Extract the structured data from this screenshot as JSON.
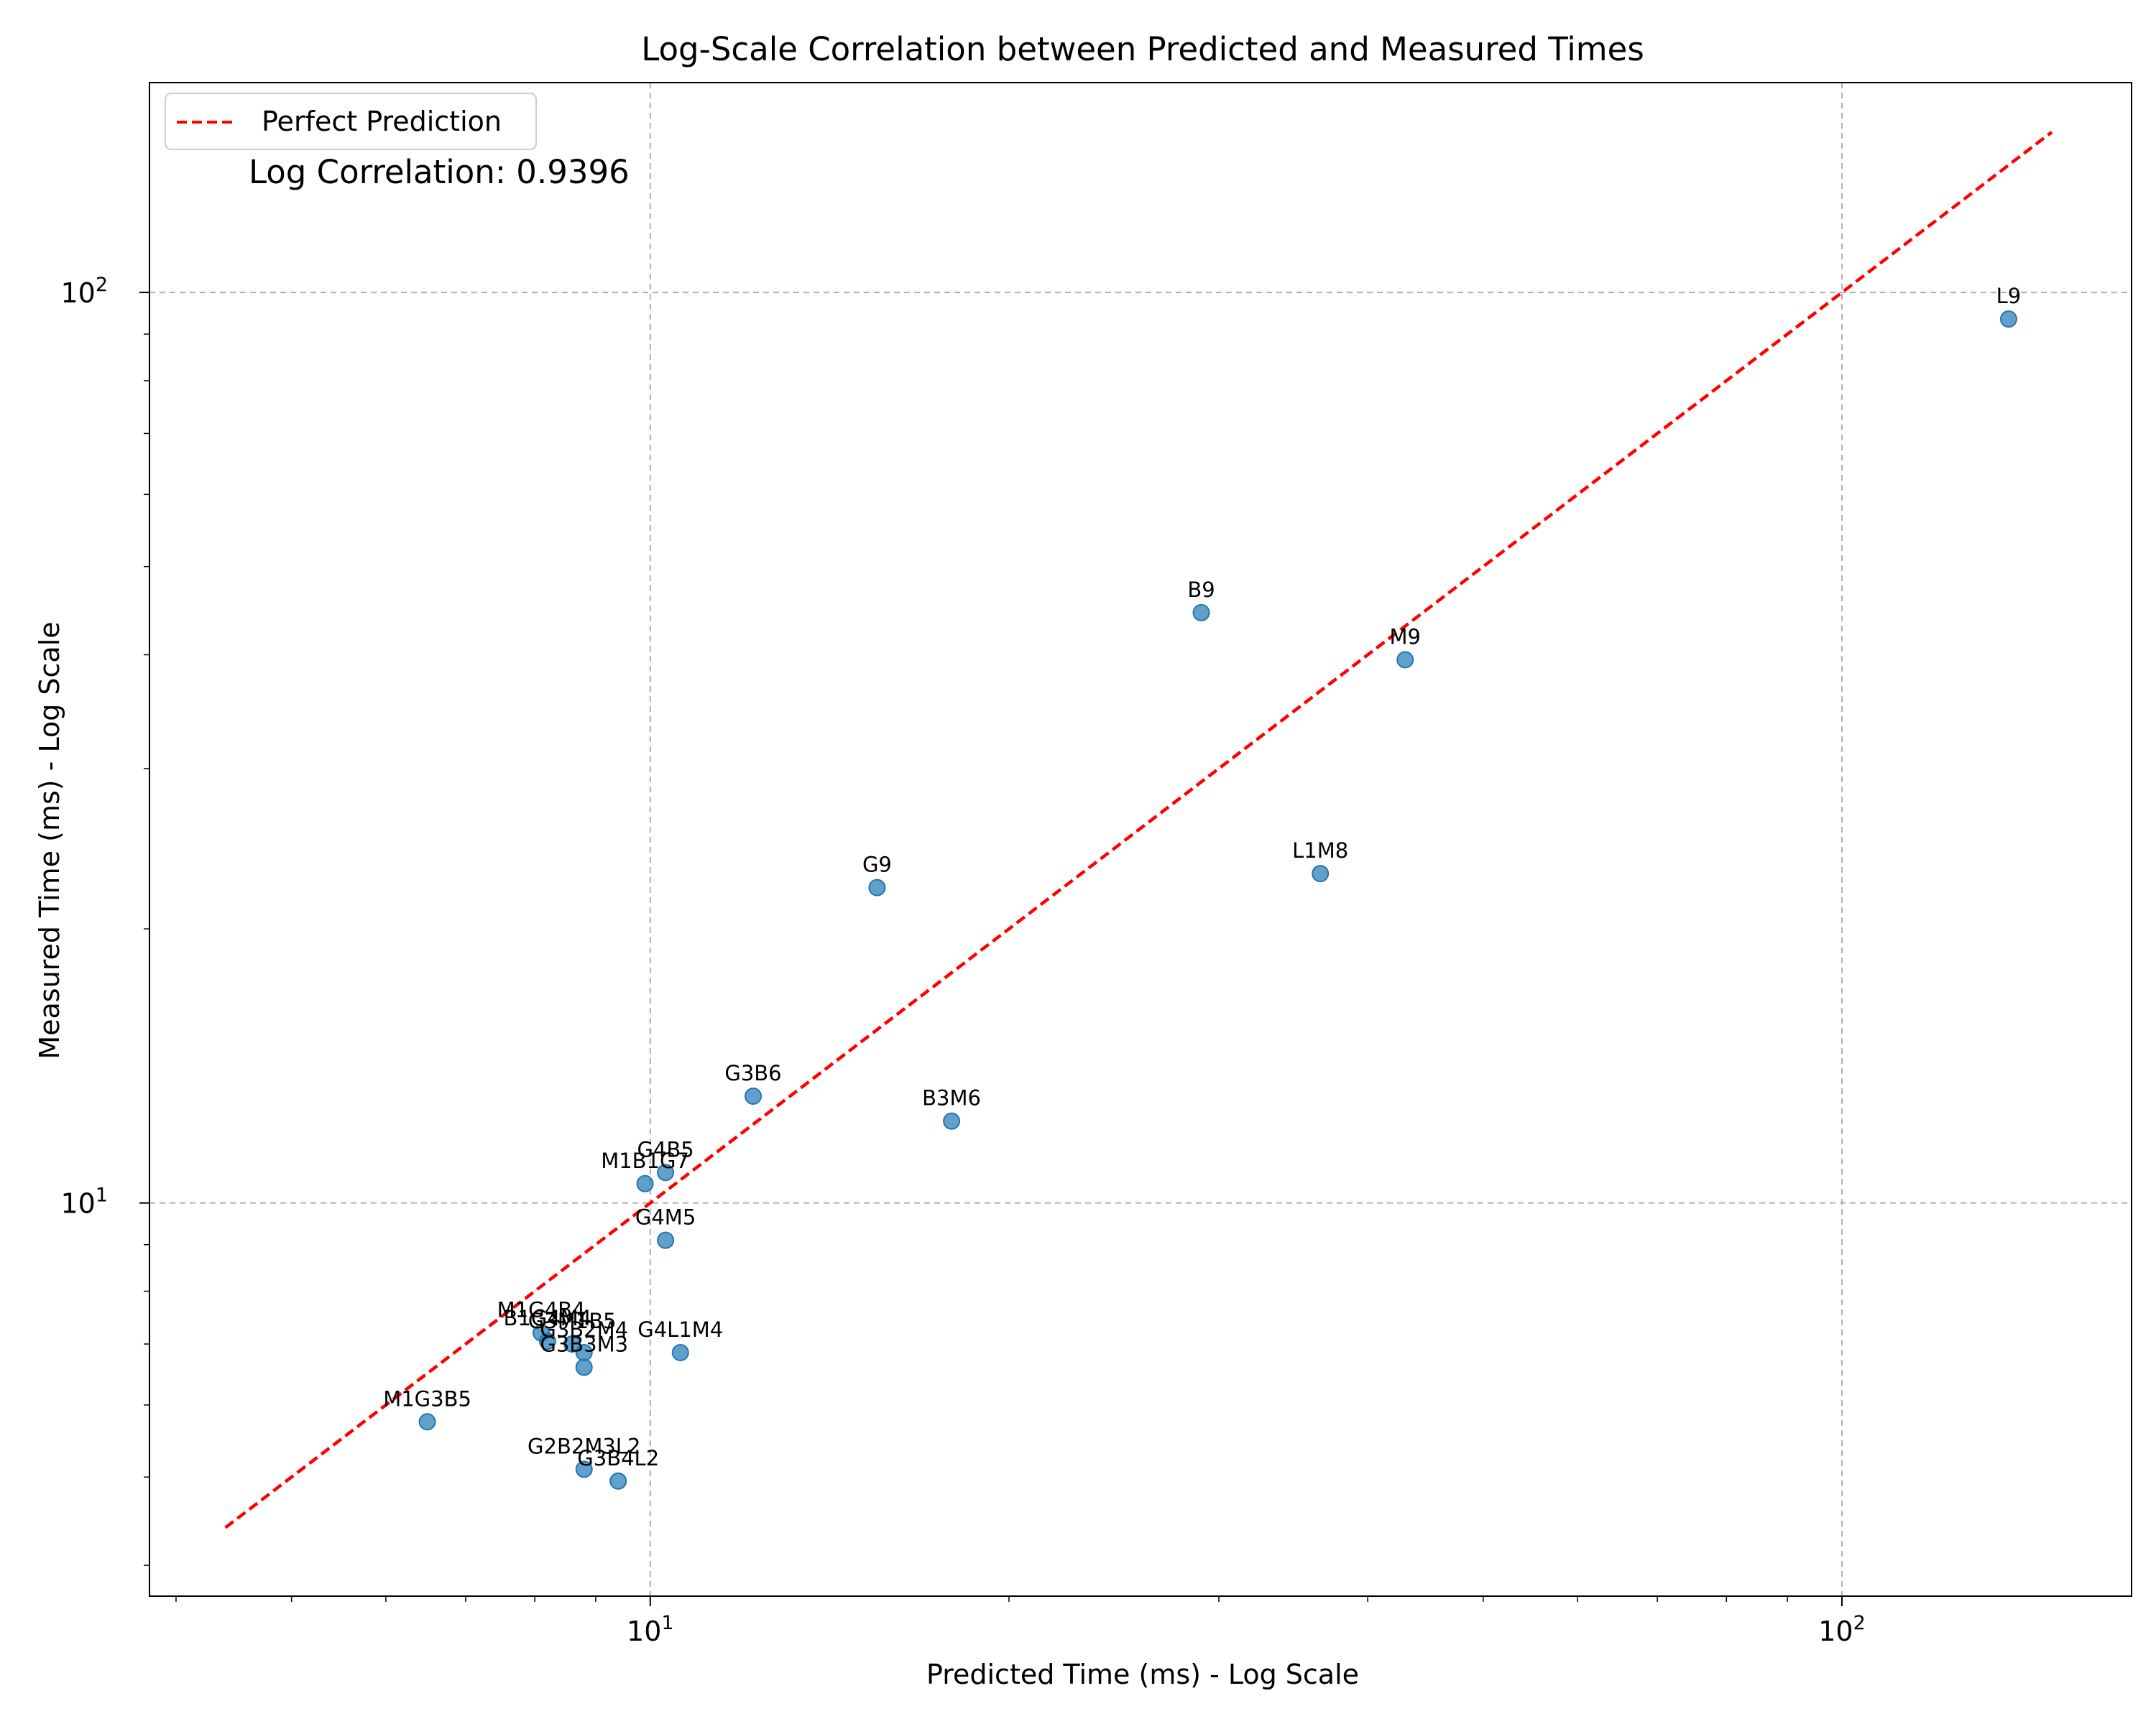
{
  "chart_data": {
    "type": "scatter",
    "title": "Log-Scale Correlation between Predicted and Measured Times",
    "xlabel": "Predicted Time (ms) - Log Scale",
    "ylabel": "Measured Time (ms) - Log Scale",
    "xscale": "log",
    "yscale": "log",
    "xlim": [
      3.8,
      175
    ],
    "ylim": [
      3.7,
      170
    ],
    "x_ticks": [
      {
        "value": 10,
        "base": "10",
        "exp": "1"
      },
      {
        "value": 100,
        "base": "10",
        "exp": "2"
      }
    ],
    "y_ticks": [
      {
        "value": 10,
        "base": "10",
        "exp": "1"
      },
      {
        "value": 100,
        "base": "10",
        "exp": "2"
      }
    ],
    "grid": true,
    "legend": {
      "placement": "top-left",
      "entries": [
        {
          "label": "Perfect Prediction",
          "color": "#ff0000",
          "style": "dashed"
        }
      ]
    },
    "annotation": "Log Correlation: 0.9396",
    "point_color": "#1f77b4",
    "reference_line": {
      "x": [
        4.4,
        150
      ],
      "y": [
        4.4,
        150
      ]
    },
    "points": [
      {
        "label": "L9",
        "x": 138,
        "y": 93.5
      },
      {
        "label": "B9",
        "x": 29.0,
        "y": 44.5
      },
      {
        "label": "M9",
        "x": 43.0,
        "y": 39.5
      },
      {
        "label": "L1M8",
        "x": 36.5,
        "y": 23.0
      },
      {
        "label": "G9",
        "x": 15.5,
        "y": 22.2
      },
      {
        "label": "G3B6",
        "x": 12.2,
        "y": 13.1
      },
      {
        "label": "B3M6",
        "x": 17.9,
        "y": 12.3
      },
      {
        "label": "G4B5",
        "x": 10.3,
        "y": 10.8
      },
      {
        "label": "M1B1G7",
        "x": 9.9,
        "y": 10.5
      },
      {
        "label": "G4M5",
        "x": 10.3,
        "y": 9.1
      },
      {
        "label": "M1G4B4",
        "x": 8.1,
        "y": 7.2
      },
      {
        "label": "B1G4M4",
        "x": 8.2,
        "y": 7.05
      },
      {
        "label": "G3M1B5",
        "x": 8.6,
        "y": 7.0
      },
      {
        "label": "G3B2M4",
        "x": 8.8,
        "y": 6.85
      },
      {
        "label": "G4L1M4",
        "x": 10.6,
        "y": 6.85
      },
      {
        "label": "G3B3M3",
        "x": 8.8,
        "y": 6.6
      },
      {
        "label": "M1G3B5",
        "x": 6.5,
        "y": 5.75
      },
      {
        "label": "G2B2M3L2",
        "x": 8.8,
        "y": 5.1
      },
      {
        "label": "G3B4L2",
        "x": 9.4,
        "y": 4.95
      }
    ]
  }
}
